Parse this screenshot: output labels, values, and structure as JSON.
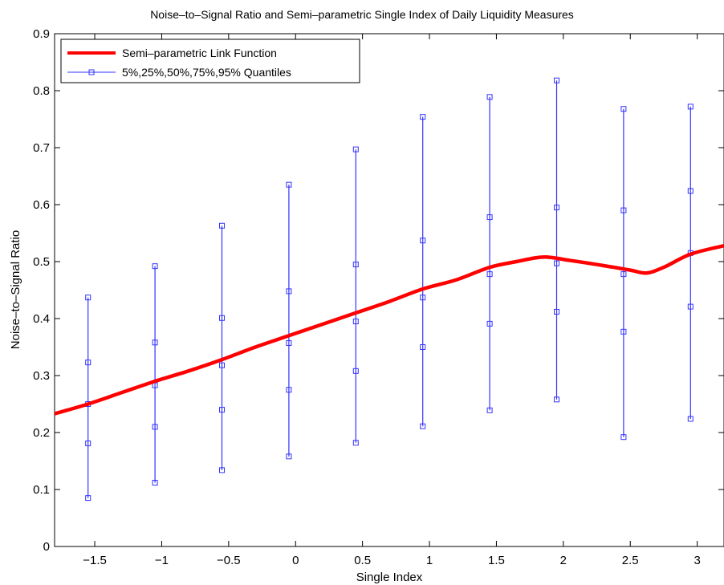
{
  "chart_data": {
    "type": "line",
    "title": "Noise–to–Signal Ratio and Semi–parametric Single Index of Daily Liquidity Measures",
    "xlabel": "Single Index",
    "ylabel": "Noise–to–Signal Ratio",
    "xlim": [
      -1.8,
      3.2
    ],
    "ylim": [
      0,
      0.9
    ],
    "x_ticks": [
      -1.5,
      -1,
      -0.5,
      0,
      0.5,
      1,
      1.5,
      2,
      2.5,
      3
    ],
    "x_tick_labels": [
      "−1.5",
      "−1",
      "−0.5",
      "0",
      "0.5",
      "1",
      "1.5",
      "2",
      "2.5",
      "3"
    ],
    "y_ticks": [
      0,
      0.1,
      0.2,
      0.3,
      0.4,
      0.5,
      0.6,
      0.7,
      0.8,
      0.9
    ],
    "y_tick_labels": [
      "0",
      "0.1",
      "0.2",
      "0.3",
      "0.4",
      "0.5",
      "0.6",
      "0.7",
      "0.8",
      "0.9"
    ],
    "grid": false,
    "legend_position": "top-left",
    "link_function": {
      "name": "Semi–parametric Link Function",
      "color": "#ff0000",
      "x": [
        -1.8,
        -1.55,
        -1.3,
        -1.05,
        -0.8,
        -0.55,
        -0.3,
        -0.05,
        0.2,
        0.45,
        0.7,
        0.95,
        1.2,
        1.45,
        1.65,
        1.85,
        2.05,
        2.3,
        2.5,
        2.62,
        2.75,
        2.95,
        3.2
      ],
      "y": [
        0.233,
        0.25,
        0.27,
        0.29,
        0.308,
        0.328,
        0.35,
        0.37,
        0.39,
        0.41,
        0.43,
        0.452,
        0.468,
        0.49,
        0.5,
        0.508,
        0.502,
        0.493,
        0.485,
        0.48,
        0.49,
        0.513,
        0.528
      ]
    },
    "quantiles": {
      "name": "5%,25%,50%,75%,95% Quantiles",
      "color": "#3333ff",
      "levels": [
        "5%",
        "25%",
        "50%",
        "75%",
        "95%"
      ],
      "x": [
        -1.55,
        -1.05,
        -0.55,
        -0.05,
        0.45,
        0.95,
        1.45,
        1.95,
        2.45,
        2.95
      ],
      "values": [
        [
          0.085,
          0.181,
          0.25,
          0.323,
          0.437
        ],
        [
          0.112,
          0.21,
          0.283,
          0.358,
          0.492
        ],
        [
          0.134,
          0.24,
          0.318,
          0.401,
          0.563
        ],
        [
          0.158,
          0.275,
          0.357,
          0.448,
          0.635
        ],
        [
          0.182,
          0.308,
          0.395,
          0.495,
          0.697
        ],
        [
          0.211,
          0.35,
          0.437,
          0.537,
          0.754
        ],
        [
          0.239,
          0.391,
          0.478,
          0.578,
          0.789
        ],
        [
          0.258,
          0.412,
          0.497,
          0.595,
          0.818
        ],
        [
          0.192,
          0.377,
          0.478,
          0.59,
          0.768
        ],
        [
          0.224,
          0.421,
          0.515,
          0.624,
          0.772
        ]
      ]
    }
  }
}
